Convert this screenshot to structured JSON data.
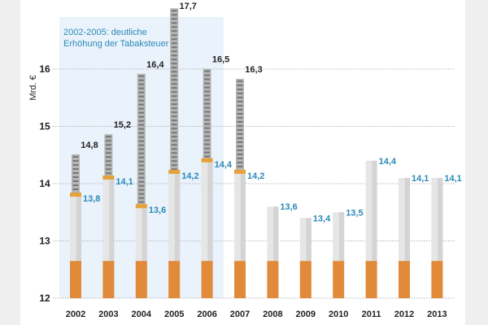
{
  "chart_data": {
    "type": "bar",
    "ylabel": "Mrd. €",
    "ylim": [
      12,
      17.7
    ],
    "yticks": [
      "12",
      "13",
      "14",
      "15",
      "16"
    ],
    "grid": true,
    "annotation": {
      "line1": "2002-2005: deutliche",
      "line2": "Erhöhung der Tabaksteuer",
      "highlight_range": [
        "2002",
        "2006"
      ]
    },
    "categories": [
      "2002",
      "2003",
      "2004",
      "2005",
      "2006",
      "2007",
      "2008",
      "2009",
      "2010",
      "2011",
      "2012",
      "2013"
    ],
    "series": [
      {
        "values": [
          13.8,
          14.1,
          13.6,
          14.2,
          14.4,
          14.2,
          13.6,
          13.4,
          13.5,
          14.4,
          14.1,
          14.1
        ],
        "labels": [
          "13,8",
          "14,1",
          "13,6",
          "14,2",
          "14,4",
          "14,2",
          "13,6",
          "13,4",
          "13,5",
          "14,4",
          "14,1",
          "14,1"
        ],
        "color": "#2a8ab8"
      },
      {
        "values": [
          14.8,
          15.2,
          16.4,
          17.7,
          16.5,
          16.3,
          null,
          null,
          null,
          null,
          null,
          null
        ],
        "labels": [
          "14,8",
          "15,2",
          "16,4",
          "17,7",
          "16,5",
          "16,3",
          "",
          "",
          "",
          "",
          "",
          ""
        ],
        "color": "#222222"
      }
    ],
    "colors": {
      "filter": "#e08a3a",
      "paper": "#e6e6e6",
      "smoke": "#9a9a9a",
      "highlight": "#e8f1fa"
    }
  }
}
